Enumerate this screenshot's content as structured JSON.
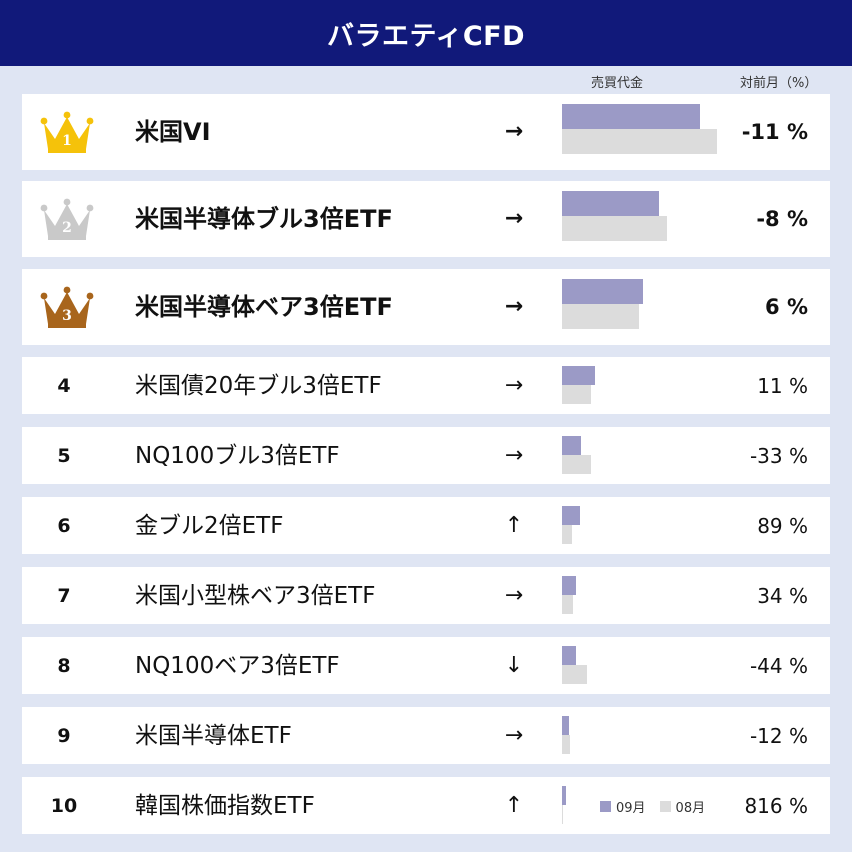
{
  "header": {
    "title": "バラエティCFD"
  },
  "columns": {
    "trading_value": "売買代金",
    "mom": "対前月（%）"
  },
  "legend": {
    "current": "09月",
    "previous": "08月"
  },
  "colors": {
    "header_bg": "#11197a",
    "bar_current": "#9b9ac6",
    "bar_previous": "#dcdcdc",
    "crown_gold": "#f5c20a",
    "crown_silver": "#c9c9c9",
    "crown_bronze": "#a8651c"
  },
  "rows": [
    {
      "rank": "1",
      "name": "米国VI",
      "arrow": "→",
      "pct": "-11 %",
      "icon": "crown-gold-icon"
    },
    {
      "rank": "2",
      "name": "米国半導体ブル3倍ETF",
      "arrow": "→",
      "pct": "-8 %",
      "icon": "crown-silver-icon"
    },
    {
      "rank": "3",
      "name": "米国半導体ベア3倍ETF",
      "arrow": "→",
      "pct": "6 %",
      "icon": "crown-bronze-icon"
    },
    {
      "rank": "4",
      "name": "米国債20年ブル3倍ETF",
      "arrow": "→",
      "pct": "11 %"
    },
    {
      "rank": "5",
      "name": "NQ100ブル3倍ETF",
      "arrow": "→",
      "pct": "-33 %"
    },
    {
      "rank": "6",
      "name": "金ブル2倍ETF",
      "arrow": "↑",
      "pct": "89 %"
    },
    {
      "rank": "7",
      "name": "米国小型株ベア3倍ETF",
      "arrow": "→",
      "pct": "34 %"
    },
    {
      "rank": "8",
      "name": "NQ100ベア3倍ETF",
      "arrow": "↓",
      "pct": "-44 %"
    },
    {
      "rank": "9",
      "name": "米国半導体ETF",
      "arrow": "→",
      "pct": "-12 %"
    },
    {
      "rank": "10",
      "name": "韓国株価指数ETF",
      "arrow": "↑",
      "pct": "816 %"
    }
  ],
  "chart_data": {
    "type": "bar",
    "categories": [
      "米国VI",
      "米国半導体ブル3倍ETF",
      "米国半導体ベア3倍ETF",
      "米国債20年ブル3倍ETF",
      "NQ100ブル3倍ETF",
      "金ブル2倍ETF",
      "米国小型株ベア3倍ETF",
      "NQ100ベア3倍ETF",
      "米国半導体ETF",
      "韓国株価指数ETF"
    ],
    "series": [
      {
        "name": "09月",
        "values": [
          1.0,
          0.7,
          0.59,
          0.24,
          0.14,
          0.13,
          0.1,
          0.1,
          0.05,
          0.03
        ]
      },
      {
        "name": "08月",
        "values": [
          1.12,
          0.76,
          0.56,
          0.21,
          0.21,
          0.07,
          0.08,
          0.18,
          0.06,
          0.003
        ]
      }
    ]
  }
}
